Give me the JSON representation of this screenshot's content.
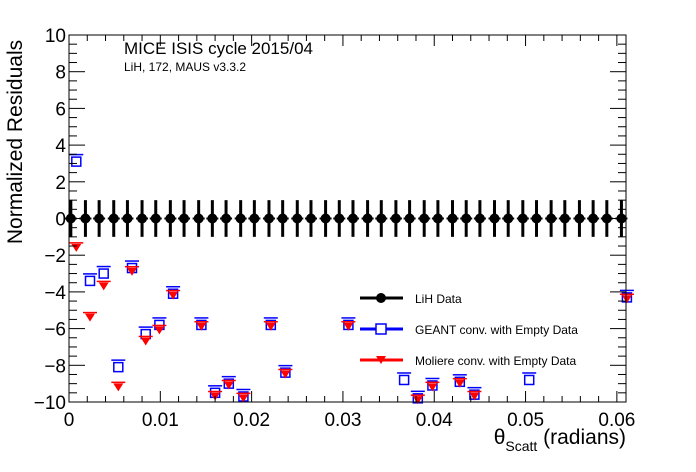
{
  "chart_data": {
    "type": "scatter",
    "title": "MICE ISIS cycle 2015/04",
    "subtitle": "LiH, 172, MAUS v3.3.2",
    "xlabel_main": "θ",
    "xlabel_sub": "Scatt",
    "xlabel_tail": " (radians)",
    "ylabel": "Normalized Residuals",
    "xlim": [
      0,
      0.061
    ],
    "ylim": [
      -10,
      10
    ],
    "x_ticks": [
      0,
      0.01,
      0.02,
      0.03,
      0.04,
      0.05,
      0.06
    ],
    "x_tick_labels": [
      "0",
      "0.01",
      "0.02",
      "0.03",
      "0.04",
      "0.05",
      "0.06"
    ],
    "y_ticks": [
      -10,
      -8,
      -6,
      -4,
      -2,
      0,
      2,
      4,
      6,
      8,
      10
    ],
    "y_tick_labels": [
      "−10",
      "−8",
      "−6",
      "−4",
      "−2",
      "0",
      "2",
      "4",
      "6",
      "8",
      "10"
    ],
    "grid": false,
    "legend_position": "bottom-right",
    "series": [
      {
        "name": "LiH Data",
        "color": "#000000",
        "marker": "filled-circle",
        "x": [
          0.0002,
          0.0018,
          0.0033,
          0.0049,
          0.0064,
          0.008,
          0.0095,
          0.0111,
          0.0126,
          0.0142,
          0.0157,
          0.0172,
          0.0188,
          0.0203,
          0.0219,
          0.0234,
          0.025,
          0.0265,
          0.0281,
          0.0296,
          0.0311,
          0.0327,
          0.0342,
          0.0358,
          0.0373,
          0.0389,
          0.0404,
          0.042,
          0.0435,
          0.045,
          0.0466,
          0.0481,
          0.0497,
          0.0512,
          0.0528,
          0.0543,
          0.0559,
          0.0574,
          0.0589,
          0.0605
        ],
        "y": [
          0,
          0,
          0,
          0,
          0,
          0,
          0,
          0,
          0,
          0,
          0,
          0,
          0,
          0,
          0,
          0,
          0,
          0,
          0,
          0,
          0,
          0,
          0,
          0,
          0,
          0,
          0,
          0,
          0,
          0,
          0,
          0,
          0,
          0,
          0,
          0,
          0,
          0,
          0,
          0
        ],
        "yerr": 1
      },
      {
        "name": "GEANT conv. with Empty Data",
        "color": "#0000ff",
        "marker": "open-square",
        "x": [
          0.0008,
          0.0023,
          0.0038,
          0.0054,
          0.0069,
          0.0084,
          0.0099,
          0.0114,
          0.0145,
          0.016,
          0.0175,
          0.0191,
          0.0221,
          0.0237,
          0.0306,
          0.0367,
          0.0382,
          0.0398,
          0.0428,
          0.0444,
          0.0504,
          0.0611
        ],
        "y": [
          3.1,
          -3.4,
          -3.0,
          -8.1,
          -2.7,
          -6.3,
          -5.8,
          -4.1,
          -5.8,
          -9.5,
          -9.0,
          -9.7,
          -5.8,
          -8.4,
          -5.8,
          -8.8,
          -9.8,
          -9.1,
          -8.9,
          -9.6,
          -8.8,
          -4.3
        ]
      },
      {
        "name": "Moliere conv. with Empty Data",
        "color": "#ff0000",
        "marker": "filled-triangle-down",
        "x": [
          0.0008,
          0.0023,
          0.0038,
          0.0054,
          0.0069,
          0.0084,
          0.0099,
          0.0114,
          0.0145,
          0.016,
          0.0175,
          0.0191,
          0.0221,
          0.0237,
          0.0306,
          0.0382,
          0.0398,
          0.0428,
          0.0444,
          0.0611
        ],
        "y": [
          -1.6,
          -5.4,
          -3.7,
          -9.2,
          -2.9,
          -6.7,
          -6.1,
          -4.2,
          -5.9,
          -9.7,
          -9.1,
          -9.8,
          -5.9,
          -8.5,
          -5.9,
          -9.9,
          -9.2,
          -9.0,
          -9.7,
          -4.4
        ]
      }
    ]
  }
}
